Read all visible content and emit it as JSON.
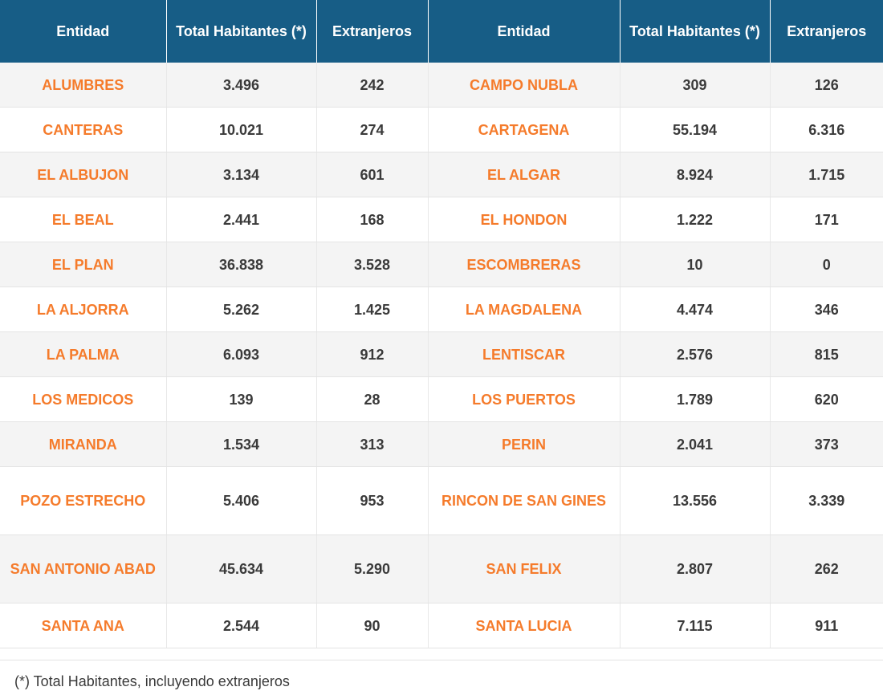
{
  "table": {
    "headers": [
      "Entidad",
      "Total Habitantes (*)",
      "Extranjeros",
      "Entidad",
      "Total Habitantes (*)",
      "Extranjeros"
    ],
    "rows": [
      [
        "ALUMBRES",
        "3.496",
        "242",
        "CAMPO NUBLA",
        "309",
        "126"
      ],
      [
        "CANTERAS",
        "10.021",
        "274",
        "CARTAGENA",
        "55.194",
        "6.316"
      ],
      [
        "EL ALBUJON",
        "3.134",
        "601",
        "EL ALGAR",
        "8.924",
        "1.715"
      ],
      [
        "EL BEAL",
        "2.441",
        "168",
        "EL HONDON",
        "1.222",
        "171"
      ],
      [
        "EL PLAN",
        "36.838",
        "3.528",
        "ESCOMBRERAS",
        "10",
        "0"
      ],
      [
        "LA ALJORRA",
        "5.262",
        "1.425",
        "LA MAGDALENA",
        "4.474",
        "346"
      ],
      [
        "LA PALMA",
        "6.093",
        "912",
        "LENTISCAR",
        "2.576",
        "815"
      ],
      [
        "LOS MEDICOS",
        "139",
        "28",
        "LOS PUERTOS",
        "1.789",
        "620"
      ],
      [
        "MIRANDA",
        "1.534",
        "313",
        "PERIN",
        "2.041",
        "373"
      ],
      [
        "POZO ESTRECHO",
        "5.406",
        "953",
        "RINCON DE SAN GINES",
        "13.556",
        "3.339"
      ],
      [
        "SAN ANTONIO ABAD",
        "45.634",
        "5.290",
        "SAN FELIX",
        "2.807",
        "262"
      ],
      [
        "SANTA ANA",
        "2.544",
        "90",
        "SANTA LUCIA",
        "7.115",
        "911"
      ]
    ]
  },
  "footnote": "(*) Total Habitantes, incluyendo extranjeros",
  "colors": {
    "header_bg": "#175d86",
    "entity_text": "#f57b2b",
    "number_text": "#3a3a3a",
    "stripe_bg": "#f4f4f4"
  }
}
